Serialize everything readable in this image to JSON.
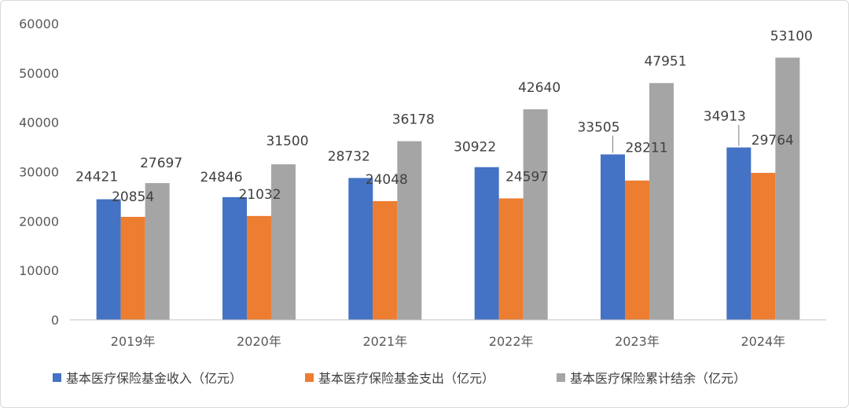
{
  "chart_data": {
    "type": "bar",
    "title": "",
    "xlabel": "",
    "ylabel": "",
    "ylim": [
      0,
      60000
    ],
    "yticks": [
      0,
      10000,
      20000,
      30000,
      40000,
      50000,
      60000
    ],
    "grid": false,
    "legend_position": "bottom",
    "categories": [
      "2019年",
      "2020年",
      "2021年",
      "2022年",
      "2023年",
      "2024年"
    ],
    "series": [
      {
        "name": "基本医疗保险基金收入（亿元）",
        "color": "#4472c4",
        "values": [
          24421,
          24846,
          28732,
          30922,
          33505,
          34913
        ]
      },
      {
        "name": "基本医疗保险基金支出（亿元）",
        "color": "#ed7d31",
        "values": [
          20854,
          21032,
          24048,
          24597,
          28211,
          29764
        ]
      },
      {
        "name": "基本医疗保险累计结余（亿元）",
        "color": "#a5a5a5",
        "values": [
          27697,
          31500,
          36178,
          42640,
          47951,
          53100
        ]
      }
    ]
  }
}
